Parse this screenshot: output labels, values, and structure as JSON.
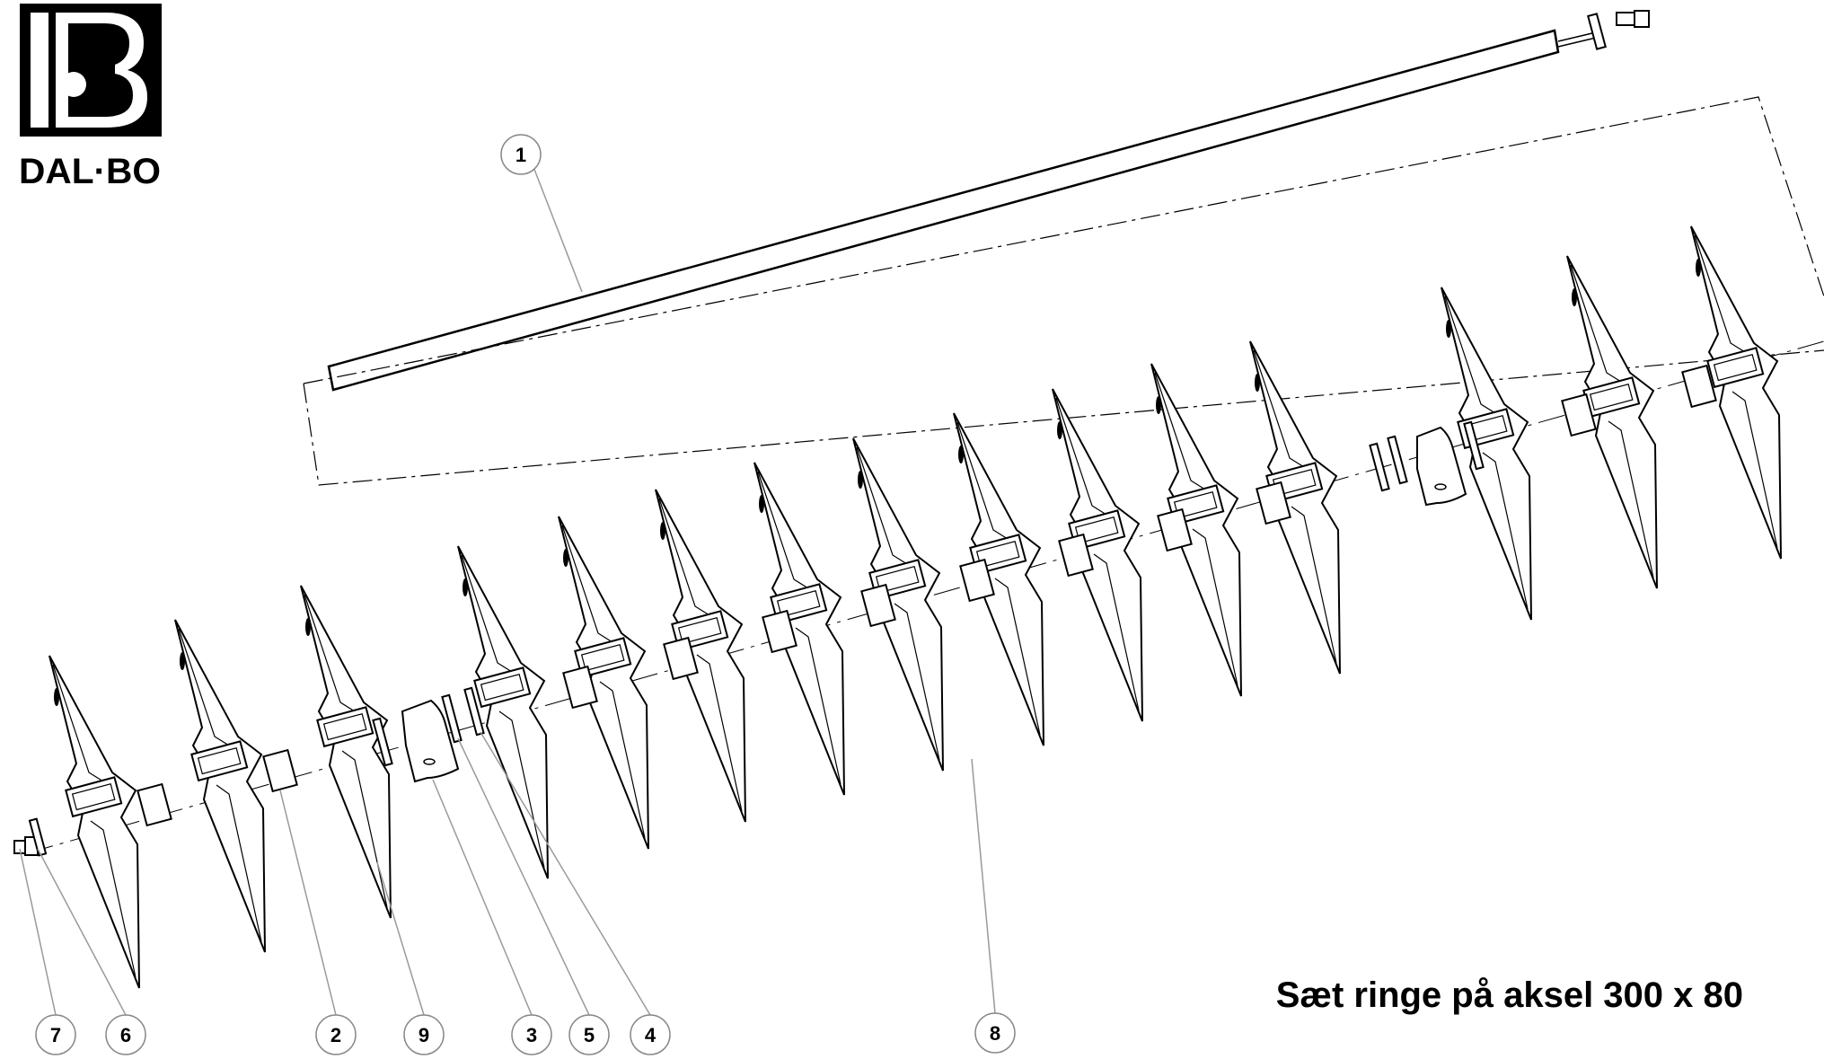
{
  "logo": {
    "text": "DAL·BO"
  },
  "caption": "Sæt ringe på aksel 300 x 80",
  "parts": [
    {
      "id": "1",
      "kind": "shaft"
    },
    {
      "id": "2",
      "kind": "spacer"
    },
    {
      "id": "3",
      "kind": "bearing"
    },
    {
      "id": "4",
      "kind": "washer"
    },
    {
      "id": "5",
      "kind": "washer"
    },
    {
      "id": "6",
      "kind": "washer"
    },
    {
      "id": "7",
      "kind": "bolt"
    },
    {
      "id": "8",
      "kind": "crosskill-ring"
    },
    {
      "id": "9",
      "kind": "crosskill-ring"
    }
  ],
  "colors": {
    "line": "#000000",
    "leader": "#9a9a9a",
    "background": "#ffffff"
  }
}
